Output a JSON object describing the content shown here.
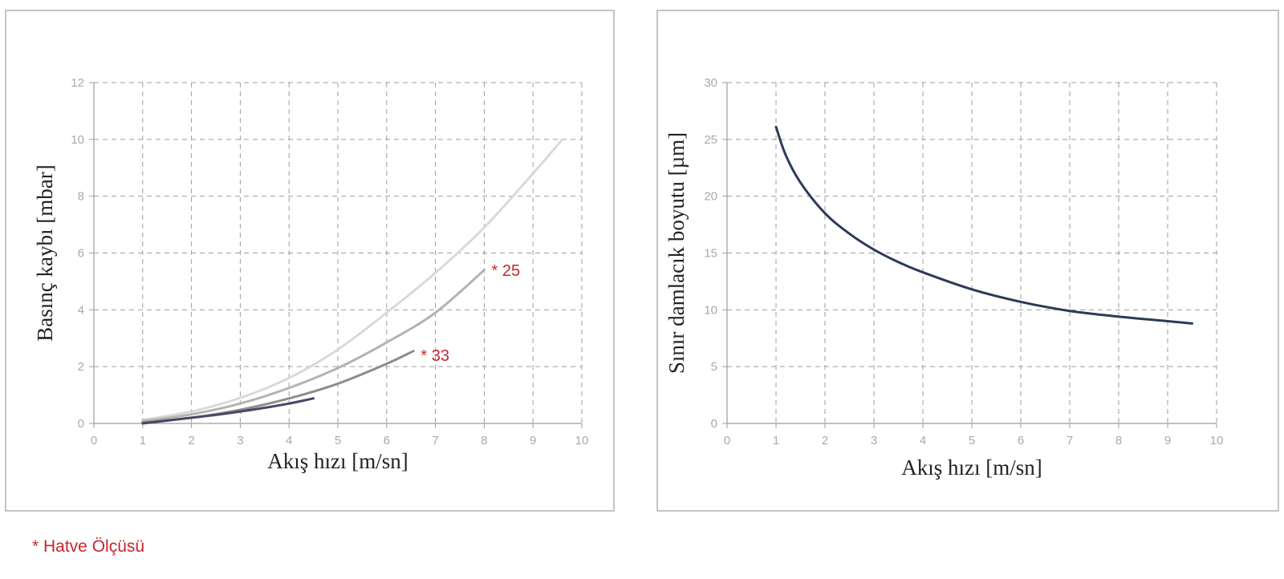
{
  "footnote": "* Hatve Ölçüsü",
  "chart_data": [
    {
      "type": "line",
      "xlabel": "Akış hızı [m/sn]",
      "ylabel": "Basınç kaybı [mbar]",
      "xlim": [
        0,
        10
      ],
      "ylim": [
        0,
        12
      ],
      "xticks": [
        0,
        1,
        2,
        3,
        4,
        5,
        6,
        7,
        8,
        9,
        10
      ],
      "yticks": [
        0,
        2,
        4,
        6,
        8,
        10,
        12
      ],
      "grid": true,
      "series": [
        {
          "color": "#d9d9d9",
          "x": [
            1,
            2,
            3,
            4,
            5,
            6,
            7,
            8,
            9,
            9.6
          ],
          "y": [
            0.12,
            0.42,
            0.9,
            1.6,
            2.6,
            3.9,
            5.3,
            6.9,
            8.8,
            10.0
          ]
        },
        {
          "color": "#b3b3b3",
          "x": [
            1,
            2,
            3,
            4,
            5,
            6,
            7,
            8
          ],
          "y": [
            0.08,
            0.32,
            0.7,
            1.25,
            1.95,
            2.85,
            3.9,
            5.4
          ]
        },
        {
          "color": "#8d8d8d",
          "x": [
            1,
            2,
            3,
            4,
            5,
            6,
            6.55
          ],
          "y": [
            0.03,
            0.2,
            0.48,
            0.88,
            1.4,
            2.1,
            2.55
          ]
        },
        {
          "color": "#4a4668",
          "x": [
            1,
            1.5,
            2,
            2.5,
            3,
            3.5,
            4,
            4.5
          ],
          "y": [
            0,
            0.1,
            0.2,
            0.3,
            0.42,
            0.55,
            0.7,
            0.88
          ]
        }
      ],
      "annotations": [
        {
          "text": "* 25",
          "x": 8.15,
          "y": 5.4
        },
        {
          "text": "* 33",
          "x": 6.7,
          "y": 2.4
        }
      ]
    },
    {
      "type": "line",
      "xlabel": "Akış hızı [m/sn]",
      "ylabel": "Sınır damlacık boyutu [µm]",
      "xlim": [
        0,
        10
      ],
      "ylim": [
        0,
        30
      ],
      "xticks": [
        0,
        1,
        2,
        3,
        4,
        5,
        6,
        7,
        8,
        9,
        10
      ],
      "yticks": [
        0,
        5,
        10,
        15,
        20,
        25,
        30
      ],
      "grid": true,
      "series": [
        {
          "color": "#2c3a55",
          "x": [
            1,
            1.2,
            1.5,
            2,
            2.5,
            3,
            3.5,
            4,
            5,
            6,
            7,
            8,
            9,
            9.5
          ],
          "y": [
            26.1,
            23.6,
            21.2,
            18.5,
            16.7,
            15.3,
            14.2,
            13.3,
            11.8,
            10.7,
            9.9,
            9.4,
            9.0,
            8.8
          ]
        }
      ]
    }
  ]
}
